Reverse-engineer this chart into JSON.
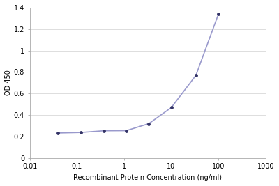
{
  "x_values": [
    0.04,
    0.12,
    0.37,
    1.11,
    3.33,
    10.0,
    33.3,
    100.0
  ],
  "y_values": [
    0.233,
    0.238,
    0.254,
    0.255,
    0.32,
    0.47,
    0.77,
    1.34
  ],
  "line_color": "#9999cc",
  "marker_color": "#333366",
  "marker_size": 3.5,
  "line_width": 1.2,
  "xlabel": "Recombinant Protein Concentration (ng/ml)",
  "ylabel": "OD 450",
  "xlim": [
    0.01,
    1000
  ],
  "ylim": [
    0,
    1.4
  ],
  "yticks": [
    0,
    0.2,
    0.4,
    0.6,
    0.8,
    1.0,
    1.2,
    1.4
  ],
  "xticks": [
    0.01,
    0.1,
    1,
    10,
    100,
    1000
  ],
  "xtick_labels": [
    "0.01",
    "0.1",
    "1",
    "10",
    "100",
    "1000"
  ],
  "background_color": "#ffffff",
  "grid_color": "#d8d8d8",
  "axis_fontsize": 7,
  "tick_fontsize": 7,
  "spine_color": "#aaaaaa"
}
